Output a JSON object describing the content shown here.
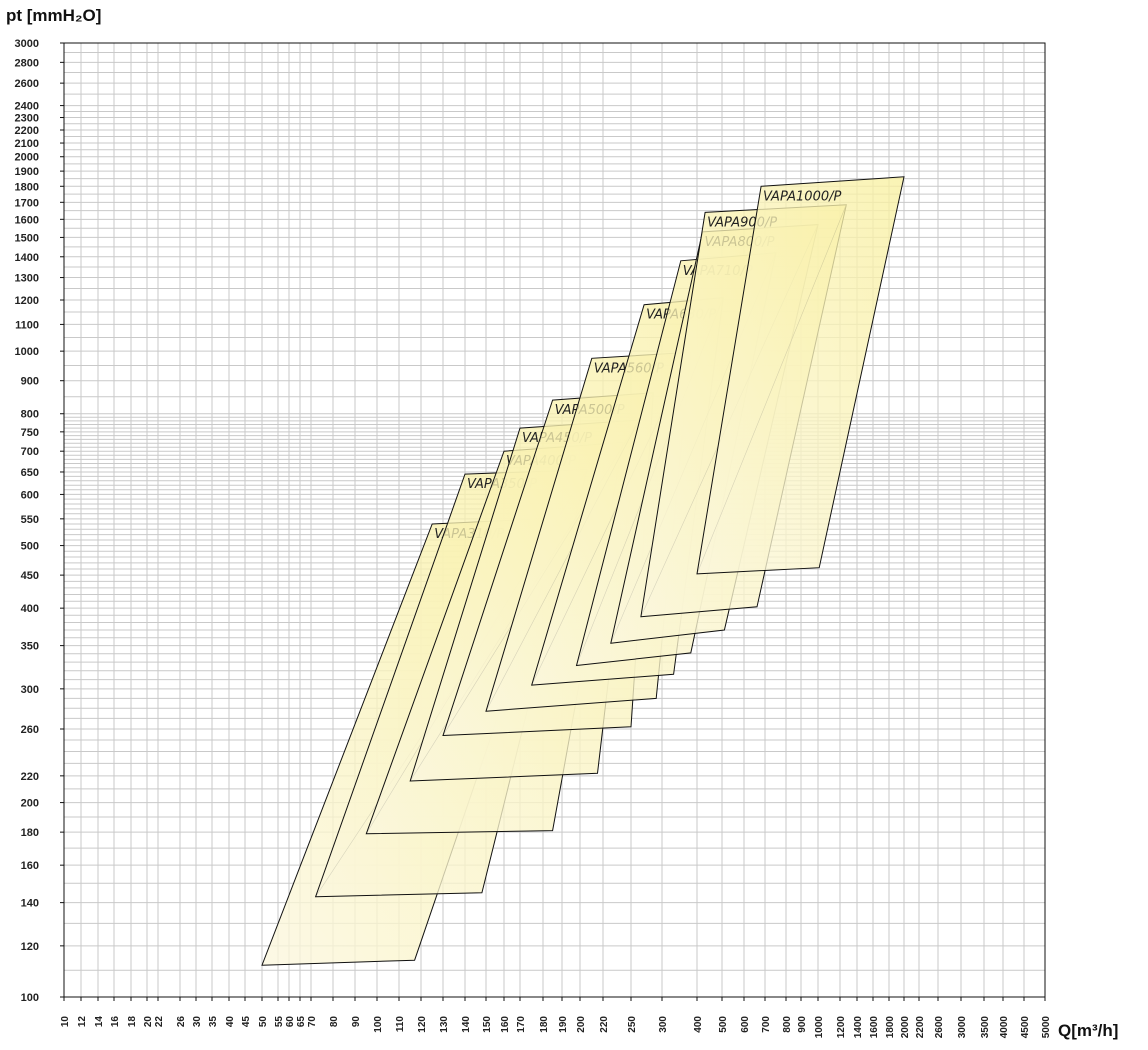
{
  "chart_data": {
    "type": "area",
    "xlabel": "Q[m³/h]",
    "ylabel": "pt [mmH₂O]",
    "x_ticks": [
      10,
      12,
      14,
      16,
      18,
      20,
      22,
      26,
      30,
      35,
      40,
      45,
      50,
      55,
      60,
      65,
      70,
      80,
      90,
      100,
      110,
      120,
      130,
      140,
      150,
      160,
      170,
      180,
      190,
      200,
      220,
      250,
      300,
      400,
      500,
      600,
      700,
      800,
      900,
      1000,
      1200,
      1400,
      1600,
      1800,
      2000,
      2200,
      2600,
      3000,
      3500,
      4000,
      4500,
      5000
    ],
    "y_ticks": [
      100,
      120,
      140,
      160,
      180,
      200,
      220,
      260,
      300,
      350,
      400,
      450,
      500,
      550,
      600,
      650,
      700,
      750,
      800,
      900,
      1000,
      1100,
      1200,
      1300,
      1400,
      1500,
      1600,
      1700,
      1800,
      1900,
      2000,
      2100,
      2200,
      2300,
      2400,
      2600,
      2800,
      3000
    ],
    "y_grid_minor": [
      110,
      130,
      150,
      170,
      190,
      210,
      230,
      240,
      250,
      270,
      280,
      290,
      310,
      320,
      330,
      340,
      360,
      370,
      380,
      390,
      410,
      420,
      430,
      440,
      460,
      470,
      480,
      490,
      510,
      520,
      530,
      540,
      560,
      570,
      580,
      590,
      610,
      620,
      630,
      640,
      660,
      670,
      680,
      690,
      710,
      720,
      730,
      740,
      760,
      770,
      780,
      790,
      850,
      950,
      1050,
      1150,
      1250,
      1350,
      1450,
      1550,
      1650,
      1750,
      1850,
      1950,
      2050,
      2150,
      2250,
      2350,
      2500,
      2700,
      2900
    ],
    "grid": true,
    "series": [
      {
        "name": "VAPA310/P",
        "polygon": [
          [
            50,
            112
          ],
          [
            117,
            114
          ],
          [
            192,
            552
          ],
          [
            125,
            540
          ]
        ],
        "inner": [
          [
            72,
            143
          ],
          [
            192,
            552
          ]
        ]
      },
      {
        "name": "VAPA350/P",
        "polygon": [
          [
            72,
            143
          ],
          [
            148,
            145
          ],
          [
            206,
            655
          ],
          [
            140,
            645
          ]
        ],
        "inner": [
          [
            95,
            179
          ],
          [
            206,
            655
          ]
        ]
      },
      {
        "name": "VAPA400/P",
        "polygon": [
          [
            95,
            179
          ],
          [
            185,
            181
          ],
          [
            241,
            722
          ],
          [
            160,
            700
          ]
        ],
        "inner": [
          [
            115,
            216
          ],
          [
            241,
            722
          ]
        ]
      },
      {
        "name": "VAPA450/P",
        "polygon": [
          [
            115,
            216
          ],
          [
            215,
            222
          ],
          [
            262,
            782
          ],
          [
            170,
            760
          ]
        ],
        "inner": [
          [
            130,
            254
          ],
          [
            262,
            782
          ]
        ]
      },
      {
        "name": "VAPA500/P",
        "polygon": [
          [
            130,
            254
          ],
          [
            250,
            262
          ],
          [
            285,
            862
          ],
          [
            185,
            840
          ]
        ],
        "inner": [
          [
            150,
            277
          ],
          [
            285,
            862
          ]
        ]
      },
      {
        "name": "VAPA560/P",
        "polygon": [
          [
            150,
            277
          ],
          [
            290,
            290
          ],
          [
            380,
            996
          ],
          [
            210,
            975
          ]
        ],
        "inner": [
          [
            175,
            304
          ],
          [
            380,
            996
          ]
        ]
      },
      {
        "name": "VAPA630/P",
        "polygon": [
          [
            175,
            304
          ],
          [
            330,
            316
          ],
          [
            505,
            1210
          ],
          [
            270,
            1180
          ]
        ],
        "inner": [
          [
            198,
            326
          ],
          [
            505,
            1210
          ]
        ]
      },
      {
        "name": "VAPA710/P",
        "polygon": [
          [
            198,
            326
          ],
          [
            380,
            341
          ],
          [
            750,
            1420
          ],
          [
            350,
            1380
          ]
        ],
        "inner": [
          [
            228,
            353
          ],
          [
            750,
            1420
          ]
        ]
      },
      {
        "name": "VAPA800/P",
        "polygon": [
          [
            228,
            353
          ],
          [
            510,
            370
          ],
          [
            1000,
            1570
          ],
          [
            420,
            1530
          ]
        ],
        "inner": [
          [
            265,
            388
          ],
          [
            1000,
            1570
          ]
        ]
      },
      {
        "name": "VAPA900/P",
        "polygon": [
          [
            265,
            388
          ],
          [
            660,
            402
          ],
          [
            1270,
            1685
          ],
          [
            430,
            1640
          ]
        ],
        "inner": [
          [
            400,
            452
          ],
          [
            1270,
            1685
          ]
        ]
      },
      {
        "name": "VAPA1000/P",
        "polygon": [
          [
            400,
            452
          ],
          [
            1010,
            462
          ],
          [
            2000,
            1862
          ],
          [
            680,
            1800
          ]
        ]
      }
    ]
  }
}
